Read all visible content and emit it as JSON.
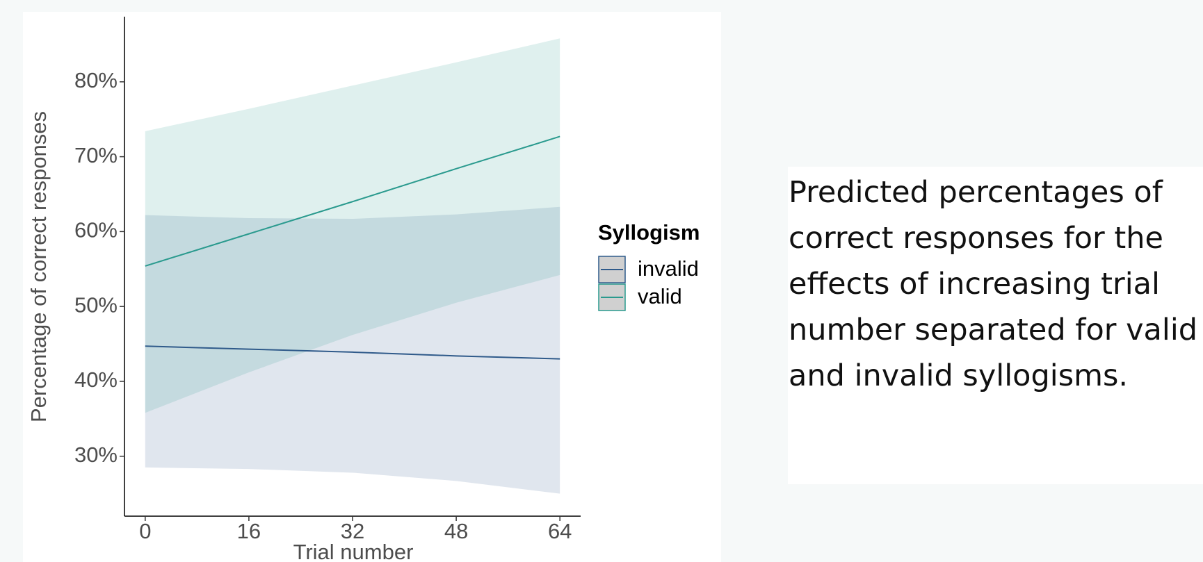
{
  "chart_data": {
    "type": "line",
    "x_label": "Trial number",
    "y_label": "Percentage of correct responses",
    "x": [
      0,
      16,
      32,
      48,
      64
    ],
    "series": [
      {
        "name": "invalid",
        "color": "#2f5a8a",
        "values": [
          44.7,
          44.3,
          43.9,
          43.4,
          43.0
        ],
        "lower": [
          28.5,
          28.3,
          27.8,
          26.7,
          25.0
        ],
        "upper": [
          62.2,
          61.8,
          61.7,
          62.3,
          63.3
        ]
      },
      {
        "name": "valid",
        "color": "#2a9a8e",
        "values": [
          55.4,
          59.7,
          64.0,
          68.4,
          72.7
        ],
        "lower": [
          35.8,
          41.2,
          46.2,
          50.5,
          54.2
        ],
        "upper": [
          73.4,
          76.4,
          79.5,
          82.6,
          85.8
        ]
      }
    ],
    "legend_title": "Syllogism",
    "xlim": [
      -3.2,
      67.2
    ],
    "xticks": [
      0,
      16,
      32,
      48,
      64
    ],
    "ylim": [
      22,
      88.7
    ],
    "yticks": [
      {
        "value": 30,
        "label": "30%"
      },
      {
        "value": 40,
        "label": "40%"
      },
      {
        "value": 50,
        "label": "50%"
      },
      {
        "value": 60,
        "label": "60%"
      },
      {
        "value": 70,
        "label": "70%"
      },
      {
        "value": 80,
        "label": "80%"
      }
    ]
  },
  "caption": "Predicted percentages of correct responses for the effects of increasing trial number separated for valid and invalid syllogisms."
}
